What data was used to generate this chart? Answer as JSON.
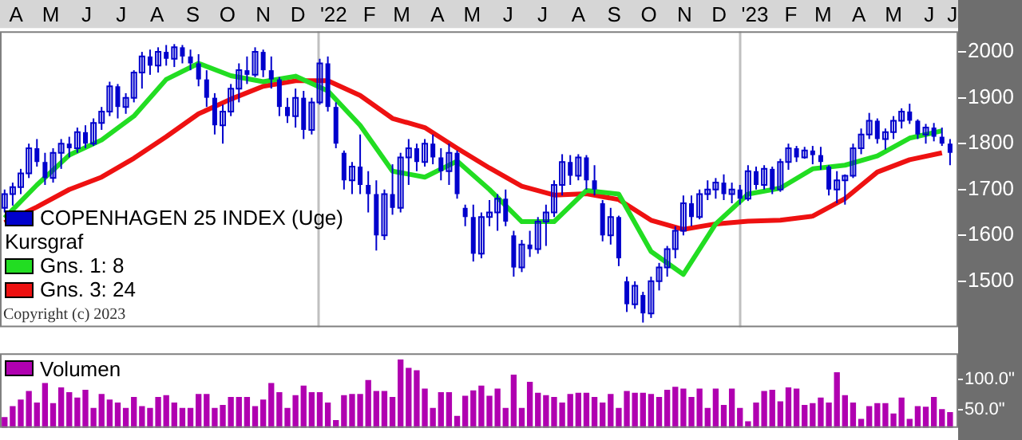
{
  "chart_data": [
    {
      "type": "candlestick",
      "legend": "bottom left",
      "legend_title": "Kursgraf",
      "grid": false,
      "xlim": [
        "2021-04-01",
        "2023-07-10"
      ],
      "xticks": [
        {
          "value": "2021-04-15",
          "label": "A"
        },
        {
          "value": "2021-05-15",
          "label": "M"
        },
        {
          "value": "2021-06-15",
          "label": "J"
        },
        {
          "value": "2021-07-15",
          "label": "J"
        },
        {
          "value": "2021-08-15",
          "label": "A"
        },
        {
          "value": "2021-09-15",
          "label": "S"
        },
        {
          "value": "2021-10-15",
          "label": "O"
        },
        {
          "value": "2021-11-15",
          "label": "N"
        },
        {
          "value": "2021-12-15",
          "label": "D"
        },
        {
          "value": "2022-01-15",
          "label": "'22"
        },
        {
          "value": "2022-02-15",
          "label": "F"
        },
        {
          "value": "2022-03-15",
          "label": "M"
        },
        {
          "value": "2022-04-15",
          "label": "A"
        },
        {
          "value": "2022-05-15",
          "label": "M"
        },
        {
          "value": "2022-06-15",
          "label": "J"
        },
        {
          "value": "2022-07-15",
          "label": "J"
        },
        {
          "value": "2022-08-15",
          "label": "A"
        },
        {
          "value": "2022-09-15",
          "label": "S"
        },
        {
          "value": "2022-10-15",
          "label": "O"
        },
        {
          "value": "2022-11-15",
          "label": "N"
        },
        {
          "value": "2022-12-15",
          "label": "D"
        },
        {
          "value": "2023-01-15",
          "label": "'23"
        },
        {
          "value": "2023-02-15",
          "label": "F"
        },
        {
          "value": "2023-03-15",
          "label": "M"
        },
        {
          "value": "2023-04-15",
          "label": "A"
        },
        {
          "value": "2023-05-15",
          "label": "M"
        },
        {
          "value": "2023-06-15",
          "label": "J"
        },
        {
          "value": "2023-07-05",
          "label": "J"
        }
      ],
      "ylim": [
        1400,
        2045
      ],
      "yticks": [
        1500,
        1600,
        1700,
        1800,
        1900,
        2000
      ],
      "ref_lines": [
        {
          "axis": "x",
          "value": "2022-01-01",
          "color": "#c0c0c0"
        },
        {
          "axis": "x",
          "value": "2023-01-01",
          "color": "#c0c0c0"
        }
      ],
      "annotations": [
        "Copyright (c) 2023"
      ],
      "series": [
        {
          "type": "candlestick",
          "name": "COPENHAGEN 25 INDEX (Uge)",
          "color": "#0000cc",
          "x": [
            "2021-04-05",
            "2021-04-12",
            "2021-04-19",
            "2021-04-26",
            "2021-05-03",
            "2021-05-10",
            "2021-05-17",
            "2021-05-24",
            "2021-05-31",
            "2021-06-07",
            "2021-06-14",
            "2021-06-21",
            "2021-06-28",
            "2021-07-05",
            "2021-07-12",
            "2021-07-19",
            "2021-07-26",
            "2021-08-02",
            "2021-08-09",
            "2021-08-16",
            "2021-08-23",
            "2021-08-30",
            "2021-09-06",
            "2021-09-13",
            "2021-09-20",
            "2021-09-27",
            "2021-10-04",
            "2021-10-11",
            "2021-10-18",
            "2021-10-25",
            "2021-11-01",
            "2021-11-08",
            "2021-11-15",
            "2021-11-22",
            "2021-11-29",
            "2021-12-06",
            "2021-12-13",
            "2021-12-20",
            "2021-12-27",
            "2022-01-03",
            "2022-01-10",
            "2022-01-17",
            "2022-01-24",
            "2022-01-31",
            "2022-02-07",
            "2022-02-14",
            "2022-02-21",
            "2022-02-28",
            "2022-03-07",
            "2022-03-14",
            "2022-03-21",
            "2022-03-28",
            "2022-04-04",
            "2022-04-11",
            "2022-04-18",
            "2022-04-25",
            "2022-05-02",
            "2022-05-09",
            "2022-05-16",
            "2022-05-23",
            "2022-05-30",
            "2022-06-06",
            "2022-06-13",
            "2022-06-20",
            "2022-06-27",
            "2022-07-04",
            "2022-07-11",
            "2022-07-18",
            "2022-07-25",
            "2022-08-01",
            "2022-08-08",
            "2022-08-15",
            "2022-08-22",
            "2022-08-29",
            "2022-09-05",
            "2022-09-12",
            "2022-09-19",
            "2022-09-26",
            "2022-10-03",
            "2022-10-10",
            "2022-10-17",
            "2022-10-24",
            "2022-10-31",
            "2022-11-07",
            "2022-11-14",
            "2022-11-21",
            "2022-11-28",
            "2022-12-05",
            "2022-12-12",
            "2022-12-19",
            "2022-12-26",
            "2023-01-02",
            "2023-01-09",
            "2023-01-16",
            "2023-01-23",
            "2023-01-30",
            "2023-02-06",
            "2023-02-13",
            "2023-02-20",
            "2023-02-27",
            "2023-03-06",
            "2023-03-13",
            "2023-03-20",
            "2023-03-27",
            "2023-04-03",
            "2023-04-10",
            "2023-04-17",
            "2023-04-24",
            "2023-05-01",
            "2023-05-08",
            "2023-05-15",
            "2023-05-22",
            "2023-05-29",
            "2023-06-05",
            "2023-06-12",
            "2023-06-19",
            "2023-06-26",
            "2023-07-03"
          ],
          "ohlc": [
            [
              1660,
              1700,
              1650,
              1690
            ],
            [
              1690,
              1715,
              1665,
              1705
            ],
            [
              1705,
              1745,
              1690,
              1735
            ],
            [
              1735,
              1800,
              1725,
              1790
            ],
            [
              1790,
              1810,
              1750,
              1760
            ],
            [
              1760,
              1780,
              1710,
              1725
            ],
            [
              1725,
              1790,
              1715,
              1780
            ],
            [
              1780,
              1810,
              1745,
              1800
            ],
            [
              1800,
              1815,
              1770,
              1790
            ],
            [
              1790,
              1835,
              1780,
              1825
            ],
            [
              1825,
              1840,
              1790,
              1800
            ],
            [
              1800,
              1855,
              1795,
              1845
            ],
            [
              1845,
              1880,
              1830,
              1870
            ],
            [
              1870,
              1935,
              1860,
              1925
            ],
            [
              1925,
              1930,
              1855,
              1880
            ],
            [
              1880,
              1910,
              1865,
              1900
            ],
            [
              1900,
              1960,
              1890,
              1955
            ],
            [
              1955,
              2000,
              1920,
              1990
            ],
            [
              1990,
              2005,
              1950,
              1970
            ],
            [
              1970,
              2010,
              1955,
              2000
            ],
            [
              2000,
              2015,
              1970,
              1985
            ],
            [
              1985,
              2017,
              1967,
              2010
            ],
            [
              2010,
              2015,
              1975,
              1990
            ],
            [
              1990,
              2005,
              1960,
              1975
            ],
            [
              1975,
              1995,
              1925,
              1940
            ],
            [
              1940,
              1960,
              1880,
              1900
            ],
            [
              1900,
              1910,
              1820,
              1840
            ],
            [
              1840,
              1885,
              1800,
              1870
            ],
            [
              1870,
              1930,
              1860,
              1920
            ],
            [
              1920,
              1975,
              1890,
              1960
            ],
            [
              1960,
              1990,
              1930,
              1950
            ],
            [
              1950,
              2010,
              1945,
              2000
            ],
            [
              2000,
              2005,
              1945,
              1960
            ],
            [
              1960,
              1990,
              1920,
              1940
            ],
            [
              1940,
              1945,
              1860,
              1880
            ],
            [
              1880,
              1900,
              1845,
              1860
            ],
            [
              1860,
              1920,
              1835,
              1900
            ],
            [
              1900,
              1915,
              1810,
              1830
            ],
            [
              1830,
              1900,
              1820,
              1890
            ],
            [
              1890,
              1985,
              1885,
              1975
            ],
            [
              1975,
              1990,
              1870,
              1880
            ],
            [
              1880,
              1890,
              1790,
              1800
            ],
            [
              1780,
              1785,
              1700,
              1720
            ],
            [
              1720,
              1760,
              1690,
              1750
            ],
            [
              1750,
              1820,
              1690,
              1710
            ],
            [
              1710,
              1740,
              1650,
              1690
            ],
            [
              1690,
              1720,
              1567,
              1600
            ],
            [
              1600,
              1700,
              1590,
              1690
            ],
            [
              1690,
              1755,
              1645,
              1660
            ],
            [
              1660,
              1780,
              1650,
              1770
            ],
            [
              1770,
              1810,
              1710,
              1790
            ],
            [
              1790,
              1800,
              1740,
              1760
            ],
            [
              1760,
              1810,
              1750,
              1800
            ],
            [
              1800,
              1820,
              1755,
              1770
            ],
            [
              1770,
              1790,
              1720,
              1740
            ],
            [
              1740,
              1800,
              1710,
              1780
            ],
            [
              1780,
              1785,
              1680,
              1690
            ],
            [
              1660,
              1667,
              1620,
              1640
            ],
            [
              1640,
              1667,
              1543,
              1560
            ],
            [
              1560,
              1650,
              1550,
              1640
            ],
            [
              1640,
              1677,
              1620,
              1650
            ],
            [
              1650,
              1690,
              1610,
              1680
            ],
            [
              1680,
              1700,
              1620,
              1630
            ],
            [
              1600,
              1610,
              1510,
              1530
            ],
            [
              1530,
              1590,
              1520,
              1580
            ],
            [
              1580,
              1610,
              1553,
              1570
            ],
            [
              1570,
              1640,
              1560,
              1630
            ],
            [
              1630,
              1667,
              1577,
              1650
            ],
            [
              1650,
              1720,
              1640,
              1710
            ],
            [
              1710,
              1777,
              1687,
              1760
            ],
            [
              1760,
              1775,
              1710,
              1730
            ],
            [
              1730,
              1777,
              1720,
              1770
            ],
            [
              1770,
              1775,
              1700,
              1720
            ],
            [
              1720,
              1753,
              1687,
              1700
            ],
            [
              1670,
              1677,
              1587,
              1600
            ],
            [
              1600,
              1660,
              1580,
              1640
            ],
            [
              1640,
              1643,
              1533,
              1550
            ],
            [
              1500,
              1510,
              1433,
              1450
            ],
            [
              1450,
              1500,
              1440,
              1490
            ],
            [
              1470,
              1477,
              1410,
              1430
            ],
            [
              1430,
              1510,
              1420,
              1500
            ],
            [
              1500,
              1540,
              1480,
              1530
            ],
            [
              1530,
              1577,
              1510,
              1570
            ],
            [
              1570,
              1620,
              1550,
              1610
            ],
            [
              1610,
              1687,
              1600,
              1670
            ],
            [
              1670,
              1687,
              1620,
              1640
            ],
            [
              1640,
              1700,
              1635,
              1690
            ],
            [
              1690,
              1720,
              1677,
              1700
            ],
            [
              1700,
              1725,
              1680,
              1715
            ],
            [
              1715,
              1733,
              1677,
              1690
            ],
            [
              1690,
              1715,
              1670,
              1700
            ],
            [
              1700,
              1710,
              1667,
              1680
            ],
            [
              1680,
              1753,
              1675,
              1740
            ],
            [
              1740,
              1750,
              1700,
              1710
            ],
            [
              1710,
              1753,
              1700,
              1745
            ],
            [
              1745,
              1750,
              1690,
              1700
            ],
            [
              1700,
              1767,
              1695,
              1760
            ],
            [
              1760,
              1800,
              1743,
              1790
            ],
            [
              1790,
              1795,
              1760,
              1770
            ],
            [
              1770,
              1793,
              1767,
              1785
            ],
            [
              1785,
              1795,
              1755,
              1775
            ],
            [
              1775,
              1793,
              1743,
              1760
            ],
            [
              1750,
              1753,
              1687,
              1700
            ],
            [
              1700,
              1740,
              1670,
              1720
            ],
            [
              1720,
              1733,
              1667,
              1730
            ],
            [
              1730,
              1800,
              1725,
              1790
            ],
            [
              1790,
              1833,
              1777,
              1820
            ],
            [
              1820,
              1867,
              1810,
              1850
            ],
            [
              1850,
              1855,
              1800,
              1810
            ],
            [
              1810,
              1833,
              1787,
              1825
            ],
            [
              1825,
              1860,
              1810,
              1850
            ],
            [
              1850,
              1877,
              1833,
              1870
            ],
            [
              1870,
              1887,
              1843,
              1850
            ],
            [
              1850,
              1853,
              1810,
              1820
            ],
            [
              1820,
              1843,
              1800,
              1835
            ],
            [
              1835,
              1845,
              1805,
              1815
            ],
            [
              1815,
              1835,
              1795,
              1800
            ],
            [
              1800,
              1810,
              1753,
              1780
            ]
          ]
        },
        {
          "type": "line",
          "name": "Gns. 1: 8",
          "color": "#22dd22",
          "x": [
            "2021-04-05",
            "2021-05-03",
            "2021-05-31",
            "2021-06-28",
            "2021-07-26",
            "2021-08-23",
            "2021-09-20",
            "2021-10-18",
            "2021-11-15",
            "2021-12-13",
            "2022-01-10",
            "2022-02-07",
            "2022-03-07",
            "2022-04-04",
            "2022-05-02",
            "2022-05-30",
            "2022-06-27",
            "2022-07-25",
            "2022-08-22",
            "2022-09-19",
            "2022-10-17",
            "2022-11-14",
            "2022-12-12",
            "2023-01-09",
            "2023-02-06",
            "2023-03-06",
            "2023-04-03",
            "2023-05-01",
            "2023-05-29",
            "2023-06-26"
          ],
          "values": [
            1638,
            1710,
            1775,
            1808,
            1860,
            1940,
            1975,
            1948,
            1935,
            1947,
            1915,
            1840,
            1740,
            1727,
            1762,
            1700,
            1630,
            1630,
            1698,
            1690,
            1565,
            1515,
            1625,
            1690,
            1703,
            1745,
            1753,
            1773,
            1812,
            1828
          ]
        },
        {
          "type": "line",
          "name": "Gns. 3: 24",
          "color": "#ee1111",
          "x": [
            "2021-04-05",
            "2021-05-03",
            "2021-05-31",
            "2021-06-28",
            "2021-07-26",
            "2021-08-23",
            "2021-09-20",
            "2021-10-18",
            "2021-11-15",
            "2021-12-13",
            "2022-01-10",
            "2022-02-07",
            "2022-03-07",
            "2022-04-04",
            "2022-05-02",
            "2022-05-30",
            "2022-06-27",
            "2022-07-25",
            "2022-08-22",
            "2022-09-19",
            "2022-10-17",
            "2022-11-14",
            "2022-12-12",
            "2023-01-09",
            "2023-02-06",
            "2023-03-06",
            "2023-04-03",
            "2023-05-01",
            "2023-05-29",
            "2023-06-26"
          ],
          "values": [
            1628,
            1662,
            1700,
            1727,
            1768,
            1815,
            1865,
            1897,
            1925,
            1937,
            1937,
            1905,
            1855,
            1835,
            1790,
            1747,
            1707,
            1688,
            1691,
            1678,
            1633,
            1613,
            1625,
            1631,
            1633,
            1642,
            1680,
            1738,
            1765,
            1780
          ]
        }
      ]
    },
    {
      "type": "bar",
      "legend": "top left",
      "tick_labels": "y",
      "grid": false,
      "xlim": [
        "2021-04-01",
        "2023-07-10"
      ],
      "ylim": [
        20,
        143
      ],
      "yticks": [
        {
          "value": 50,
          "label": "50.0\""
        },
        {
          "value": 100,
          "label": "100.0\""
        }
      ],
      "x": [
        "2021-04-05",
        "2021-04-12",
        "2021-04-19",
        "2021-04-26",
        "2021-05-03",
        "2021-05-10",
        "2021-05-17",
        "2021-05-24",
        "2021-05-31",
        "2021-06-07",
        "2021-06-14",
        "2021-06-21",
        "2021-06-28",
        "2021-07-05",
        "2021-07-12",
        "2021-07-19",
        "2021-07-26",
        "2021-08-02",
        "2021-08-09",
        "2021-08-16",
        "2021-08-23",
        "2021-08-30",
        "2021-09-06",
        "2021-09-13",
        "2021-09-20",
        "2021-09-27",
        "2021-10-04",
        "2021-10-11",
        "2021-10-18",
        "2021-10-25",
        "2021-11-01",
        "2021-11-08",
        "2021-11-15",
        "2021-11-22",
        "2021-11-29",
        "2021-12-06",
        "2021-12-13",
        "2021-12-20",
        "2021-12-27",
        "2022-01-03",
        "2022-01-10",
        "2022-01-17",
        "2022-01-24",
        "2022-01-31",
        "2022-02-07",
        "2022-02-14",
        "2022-02-21",
        "2022-02-28",
        "2022-03-07",
        "2022-03-14",
        "2022-03-21",
        "2022-03-28",
        "2022-04-04",
        "2022-04-11",
        "2022-04-18",
        "2022-04-25",
        "2022-05-02",
        "2022-05-09",
        "2022-05-16",
        "2022-05-23",
        "2022-05-30",
        "2022-06-06",
        "2022-06-13",
        "2022-06-20",
        "2022-06-27",
        "2022-07-04",
        "2022-07-11",
        "2022-07-18",
        "2022-07-25",
        "2022-08-01",
        "2022-08-08",
        "2022-08-15",
        "2022-08-22",
        "2022-08-29",
        "2022-09-05",
        "2022-09-12",
        "2022-09-19",
        "2022-09-26",
        "2022-10-03",
        "2022-10-10",
        "2022-10-17",
        "2022-10-24",
        "2022-10-31",
        "2022-11-07",
        "2022-11-14",
        "2022-11-21",
        "2022-11-28",
        "2022-12-05",
        "2022-12-12",
        "2022-12-19",
        "2022-12-26",
        "2023-01-02",
        "2023-01-09",
        "2023-01-16",
        "2023-01-23",
        "2023-01-30",
        "2023-02-06",
        "2023-02-13",
        "2023-02-20",
        "2023-02-27",
        "2023-03-06",
        "2023-03-13",
        "2023-03-20",
        "2023-03-27",
        "2023-04-03",
        "2023-04-10",
        "2023-04-17",
        "2023-04-24",
        "2023-05-01",
        "2023-05-08",
        "2023-05-15",
        "2023-05-22",
        "2023-05-29",
        "2023-06-05",
        "2023-06-12",
        "2023-06-19",
        "2023-06-26",
        "2023-07-03"
      ],
      "series": [
        {
          "name": "Volumen",
          "color": "#b000b0",
          "values": [
            37,
            55,
            66,
            80,
            61,
            93,
            60,
            86,
            78,
            69,
            82,
            52,
            75,
            66,
            61,
            52,
            70,
            55,
            52,
            70,
            73,
            61,
            52,
            52,
            75,
            75,
            52,
            57,
            70,
            70,
            70,
            55,
            66,
            93,
            78,
            52,
            73,
            89,
            78,
            78,
            61,
            32,
            73,
            75,
            75,
            98,
            80,
            80,
            70,
            132,
            118,
            114,
            84,
            52,
            78,
            78,
            39,
            72,
            81,
            89,
            72,
            84,
            52,
            107,
            52,
            95,
            77,
            73,
            70,
            61,
            75,
            77,
            77,
            70,
            61,
            75,
            52,
            80,
            77,
            77,
            75,
            70,
            82,
            87,
            84,
            70,
            84,
            52,
            84,
            57,
            84,
            52,
            30,
            61,
            80,
            82,
            63,
            86,
            84,
            57,
            60,
            69,
            61,
            111,
            73,
            61,
            34,
            55,
            60,
            60,
            43,
            69,
            34,
            55,
            54,
            70,
            50,
            45
          ]
        }
      ]
    }
  ]
}
